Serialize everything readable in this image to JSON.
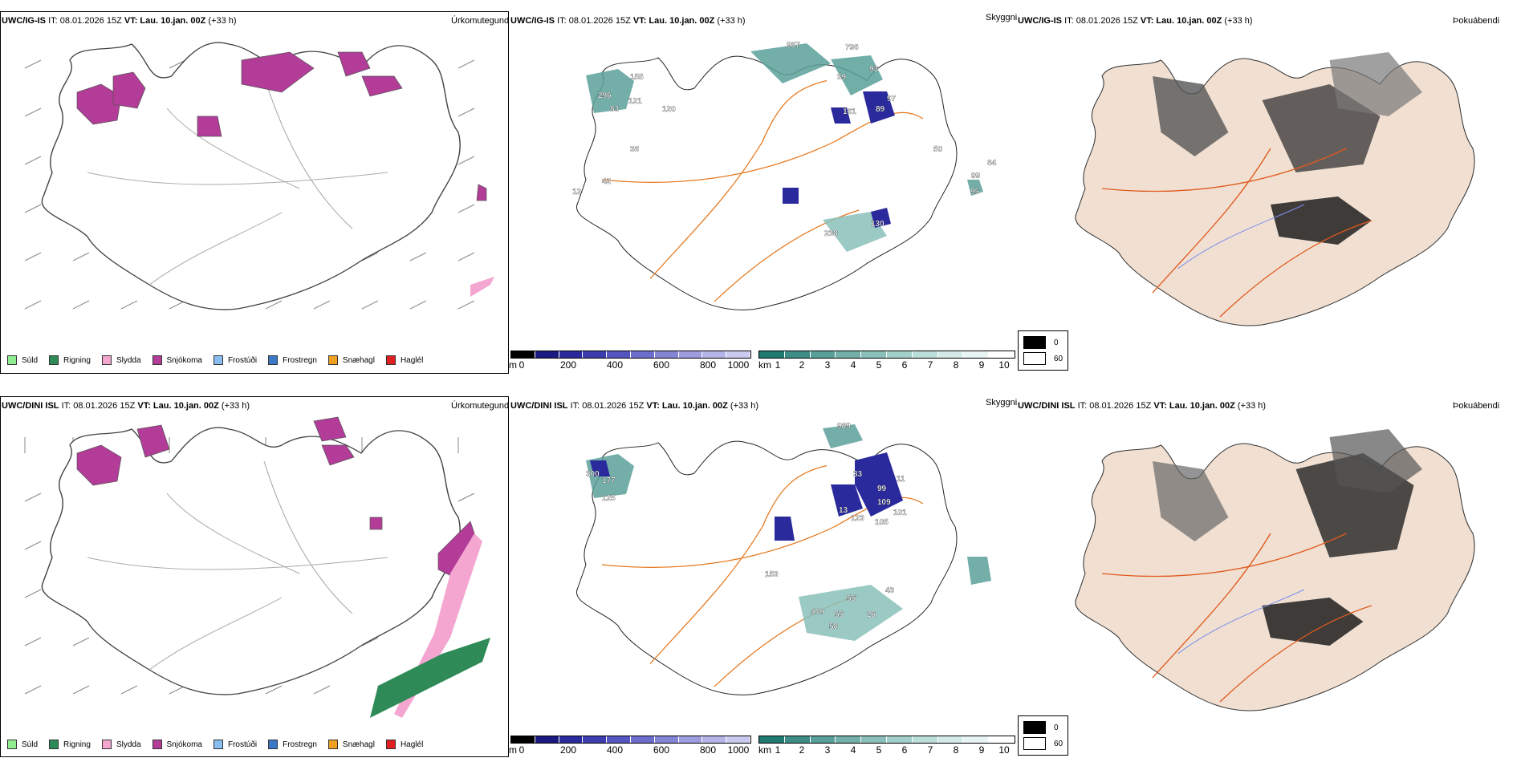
{
  "rows": [
    {
      "model": "UWC/IG-IS",
      "it": "IT: 08.01.2026 15Z",
      "vt_label": "VT:",
      "vt_value": "Lau. 10.jan. 00Z",
      "lead": "(+33 h)",
      "labels_mid": [
        "987",
        "796",
        "93",
        "39",
        "97",
        "89",
        "161",
        "155",
        "296",
        "83",
        "121",
        "50",
        "38",
        "120",
        "42",
        "99",
        "84",
        "95",
        "130",
        "238",
        "12"
      ],
      "labels_mid_pos_note": "numbers drawn on cloud ceiling map"
    },
    {
      "model": "UWC/DINI ISL",
      "it": "IT: 08.01.2026 15Z",
      "vt_label": "VT:",
      "vt_value": "Lau. 10.jan. 00Z",
      "lead": "(+33 h)",
      "labels_mid": [
        "989",
        "99",
        "33",
        "11",
        "101",
        "109",
        "105",
        "123",
        "13",
        "125",
        "177",
        "300",
        "153",
        "55",
        "479",
        "58",
        "26",
        "43",
        "55"
      ]
    }
  ],
  "panel_titles": {
    "precip": "Úrkomutegund",
    "cloud": "Skyggni",
    "fog": "Þokuábendi"
  },
  "precip_legend": [
    {
      "label": "Súld",
      "color": "#90ee90"
    },
    {
      "label": "Rigning",
      "color": "#2e8b57"
    },
    {
      "label": "Slydda",
      "color": "#f4a6d0"
    },
    {
      "label": "Snjókoma",
      "color": "#b23c98"
    },
    {
      "label": "Frostúði",
      "color": "#87bdf0"
    },
    {
      "label": "Frostregn",
      "color": "#3a78c8"
    },
    {
      "label": "Snæhagl",
      "color": "#f0a020"
    },
    {
      "label": "Haglél",
      "color": "#e02020"
    }
  ],
  "height_bar": {
    "unit": "m",
    "ticks": [
      "0",
      "200",
      "400",
      "600",
      "800",
      "1000"
    ],
    "colors": [
      "#000000",
      "#1a1a80",
      "#2a2a9c",
      "#3d3db0",
      "#5555c0",
      "#6d6dcc",
      "#8585d6",
      "#9d9de0",
      "#b4b4e8",
      "#cacaf0"
    ]
  },
  "vis_bar": {
    "unit": "km",
    "ticks": [
      "1",
      "2",
      "3",
      "4",
      "5",
      "6",
      "7",
      "8",
      "9",
      "10"
    ],
    "colors": [
      "#1f7a72",
      "#3d8d86",
      "#5aa09a",
      "#73b0aa",
      "#8abfba",
      "#a3cfca",
      "#bcdeda",
      "#d3eae8",
      "#e8f4f3",
      "#ffffff"
    ]
  },
  "sky_legend": [
    {
      "label": "0",
      "color": "#000000"
    },
    {
      "label": "60",
      "color": "#ffffff"
    }
  ]
}
